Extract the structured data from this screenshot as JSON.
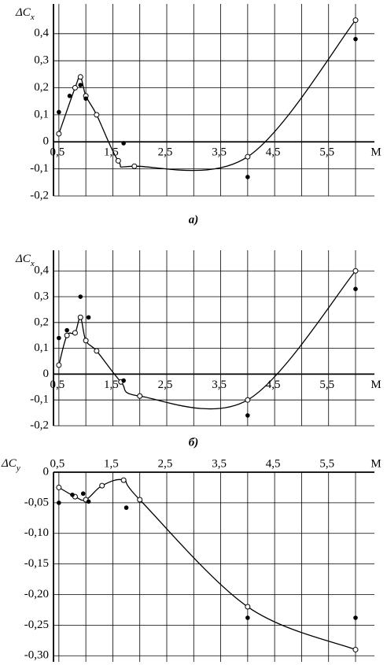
{
  "chart_data": [
    {
      "type": "line",
      "caption": "а)",
      "y_label": "ΔC",
      "y_label_sub": "x",
      "x_label": "M",
      "xlim": [
        0.4,
        6.35
      ],
      "ylim": [
        -0.2,
        0.51
      ],
      "xticks": [
        {
          "value": 0.5,
          "label": "0,5"
        },
        {
          "value": 1.5,
          "label": "1,5"
        },
        {
          "value": 2.5,
          "label": "2,5"
        },
        {
          "value": 3.5,
          "label": "3,5"
        },
        {
          "value": 4.5,
          "label": "4,5"
        },
        {
          "value": 5.5,
          "label": "5,5"
        }
      ],
      "xgrid": [
        1,
        2,
        3,
        4,
        5,
        6
      ],
      "yticks": [
        {
          "value": -0.2,
          "label": "-0,2"
        },
        {
          "value": -0.1,
          "label": "-0,1"
        },
        0,
        {
          "value": 0.1,
          "label": "0,1"
        },
        {
          "value": 0.2,
          "label": "0,2"
        },
        {
          "value": 0.3,
          "label": "0,3"
        },
        {
          "value": 0.4,
          "label": "0,4"
        }
      ],
      "x_labels_side": "zero",
      "grid": true,
      "series": [
        {
          "style": "curve-open",
          "color": "#000",
          "x": [
            0.5,
            0.8,
            0.9,
            1.0,
            1.2,
            1.6,
            1.9,
            4.0,
            6.0
          ],
          "values": [
            0.03,
            0.2,
            0.24,
            0.17,
            0.1,
            -0.07,
            -0.09,
            -0.055,
            0.45
          ]
        },
        {
          "style": "dots",
          "color": "#000",
          "x": [
            0.5,
            0.7,
            0.9,
            1.0,
            1.7,
            4.0,
            6.0
          ],
          "values": [
            0.11,
            0.17,
            0.21,
            0.16,
            -0.005,
            -0.13,
            0.38
          ]
        }
      ]
    },
    {
      "type": "line",
      "caption": "б)",
      "y_label": "ΔC",
      "y_label_sub": "x",
      "x_label": "M",
      "xlim": [
        0.4,
        6.35
      ],
      "ylim": [
        -0.2,
        0.48
      ],
      "xticks": [
        {
          "value": 0.5,
          "label": "0,5"
        },
        {
          "value": 1.5,
          "label": "1,5"
        },
        {
          "value": 2.5,
          "label": "2,5"
        },
        {
          "value": 3.5,
          "label": "3,5"
        },
        {
          "value": 4.5,
          "label": "4,5"
        },
        {
          "value": 5.5,
          "label": "5,5"
        }
      ],
      "xgrid": [
        1,
        2,
        3,
        4,
        5,
        6
      ],
      "yticks": [
        {
          "value": -0.2,
          "label": "-0,2"
        },
        {
          "value": -0.1,
          "label": "-0,1"
        },
        0,
        {
          "value": 0.1,
          "label": "0,1"
        },
        {
          "value": 0.2,
          "label": "0,2"
        },
        {
          "value": 0.3,
          "label": "0,3"
        },
        {
          "value": 0.4,
          "label": "0,4"
        }
      ],
      "x_labels_side": "zero",
      "grid": true,
      "series": [
        {
          "style": "curve-open",
          "color": "#000",
          "x": [
            0.5,
            0.65,
            0.8,
            0.9,
            1.0,
            1.2,
            1.65,
            2.0,
            4.0,
            6.0
          ],
          "values": [
            0.035,
            0.15,
            0.16,
            0.22,
            0.13,
            0.09,
            -0.03,
            -0.085,
            -0.1,
            0.4
          ]
        },
        {
          "style": "dots",
          "color": "#000",
          "x": [
            0.5,
            0.65,
            0.9,
            1.05,
            1.7,
            4.0,
            6.0
          ],
          "values": [
            0.14,
            0.17,
            0.3,
            0.22,
            -0.025,
            -0.16,
            0.33
          ]
        }
      ]
    },
    {
      "type": "line",
      "y_label": "ΔC",
      "y_label_sub": "y",
      "x_label": "M",
      "xlim": [
        0.4,
        6.35
      ],
      "ylim": [
        -0.31,
        0
      ],
      "xticks": [
        {
          "value": 0.5,
          "label": "0,5"
        },
        {
          "value": 1.5,
          "label": "1,5"
        },
        {
          "value": 2.5,
          "label": "2,5"
        },
        {
          "value": 3.5,
          "label": "3,5"
        },
        {
          "value": 4.5,
          "label": "4,5"
        },
        {
          "value": 5.5,
          "label": "5,5"
        }
      ],
      "xgrid": [
        1,
        2,
        3,
        4,
        5,
        6
      ],
      "yticks": [
        {
          "value": -0.3,
          "label": "-0,30"
        },
        {
          "value": -0.25,
          "label": "-0,25"
        },
        {
          "value": -0.2,
          "label": "-0,20"
        },
        {
          "value": -0.15,
          "label": "-0,15"
        },
        {
          "value": -0.1,
          "label": "-0,10"
        },
        {
          "value": -0.05,
          "label": "-0,05"
        },
        0
      ],
      "x_labels_side": "top",
      "grid": true,
      "series": [
        {
          "style": "curve-open",
          "color": "#000",
          "x": [
            0.5,
            0.8,
            1.0,
            1.3,
            1.7,
            2.0,
            4.0,
            6.0
          ],
          "values": [
            -0.025,
            -0.04,
            -0.045,
            -0.022,
            -0.013,
            -0.045,
            -0.22,
            -0.29
          ]
        },
        {
          "style": "dots",
          "color": "#000",
          "x": [
            0.5,
            0.75,
            0.95,
            1.05,
            1.75,
            4.0,
            6.0
          ],
          "values": [
            -0.05,
            -0.037,
            -0.035,
            -0.048,
            -0.058,
            -0.238,
            -0.238
          ]
        }
      ]
    }
  ]
}
